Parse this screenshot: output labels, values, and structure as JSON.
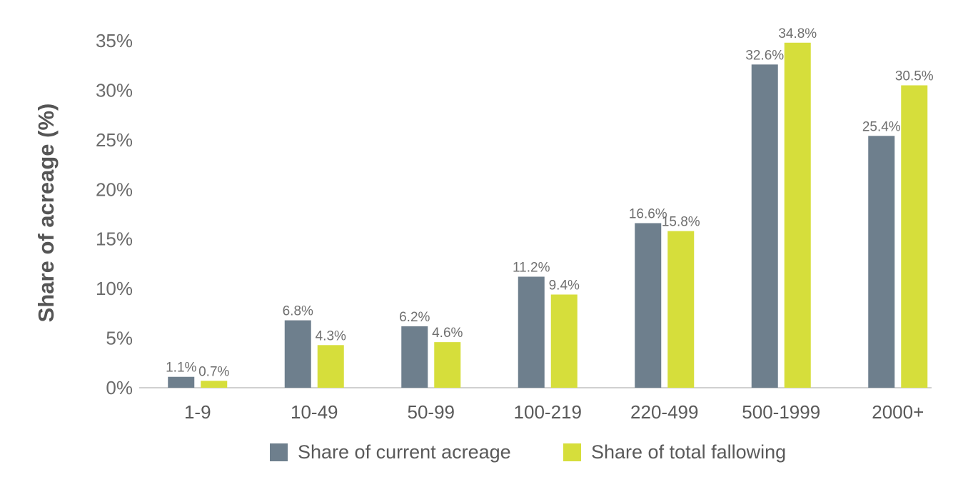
{
  "chart_data": {
    "type": "bar",
    "ylabel": "Share of acreage (%)",
    "xlabel": "",
    "categories": [
      "1-9",
      "10-49",
      "50-99",
      "100-219",
      "220-499",
      "500-1999",
      "2000+"
    ],
    "series": [
      {
        "name": "Share of current acreage",
        "color": "#6e7f8d",
        "values": [
          1.1,
          6.8,
          6.2,
          11.2,
          16.6,
          32.6,
          25.4
        ],
        "labels": [
          "1.1%",
          "6.8%",
          "6.2%",
          "11.2%",
          "16.6%",
          "32.6%",
          "25.4%"
        ]
      },
      {
        "name": "Share of total fallowing",
        "color": "#d6de3b",
        "values": [
          0.7,
          4.3,
          4.6,
          9.4,
          15.8,
          34.8,
          30.5
        ],
        "labels": [
          "0.7%",
          "4.3%",
          "4.6%",
          "9.4%",
          "15.8%",
          "34.8%",
          "30.5%"
        ]
      }
    ],
    "ylim": [
      0,
      35
    ],
    "yticks": [
      0,
      5,
      10,
      15,
      20,
      25,
      30,
      35
    ],
    "ytick_labels": [
      "0%",
      "5%",
      "10%",
      "15%",
      "20%",
      "25%",
      "30%",
      "35%"
    ],
    "grid": false,
    "legend": "bottom"
  }
}
